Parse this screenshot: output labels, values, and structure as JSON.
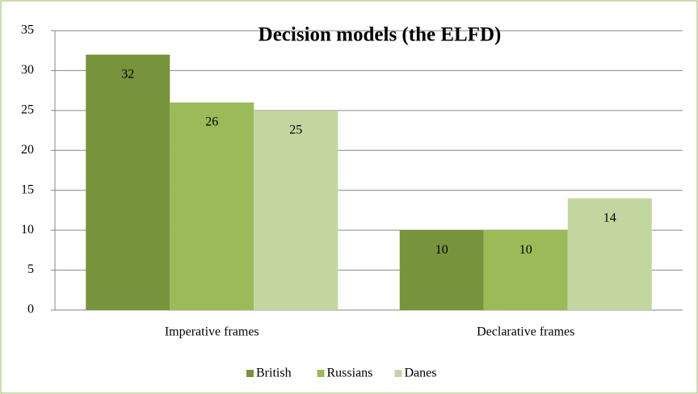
{
  "chart_data": {
    "type": "bar",
    "title": "Decision models (the ELFD)",
    "categories": [
      "Imperative frames",
      "Declarative frames"
    ],
    "series": [
      {
        "name": "British",
        "color": "#77933c",
        "values": [
          32,
          10
        ]
      },
      {
        "name": "Russians",
        "color": "#9bbb59",
        "values": [
          26,
          10
        ]
      },
      {
        "name": "Danes",
        "color": "#c4d6a0",
        "values": [
          25,
          14
        ]
      }
    ],
    "ylim": [
      0,
      35
    ],
    "yticks": [
      0,
      5,
      10,
      15,
      20,
      25,
      30,
      35
    ],
    "grid": true,
    "legend": "bottom"
  }
}
